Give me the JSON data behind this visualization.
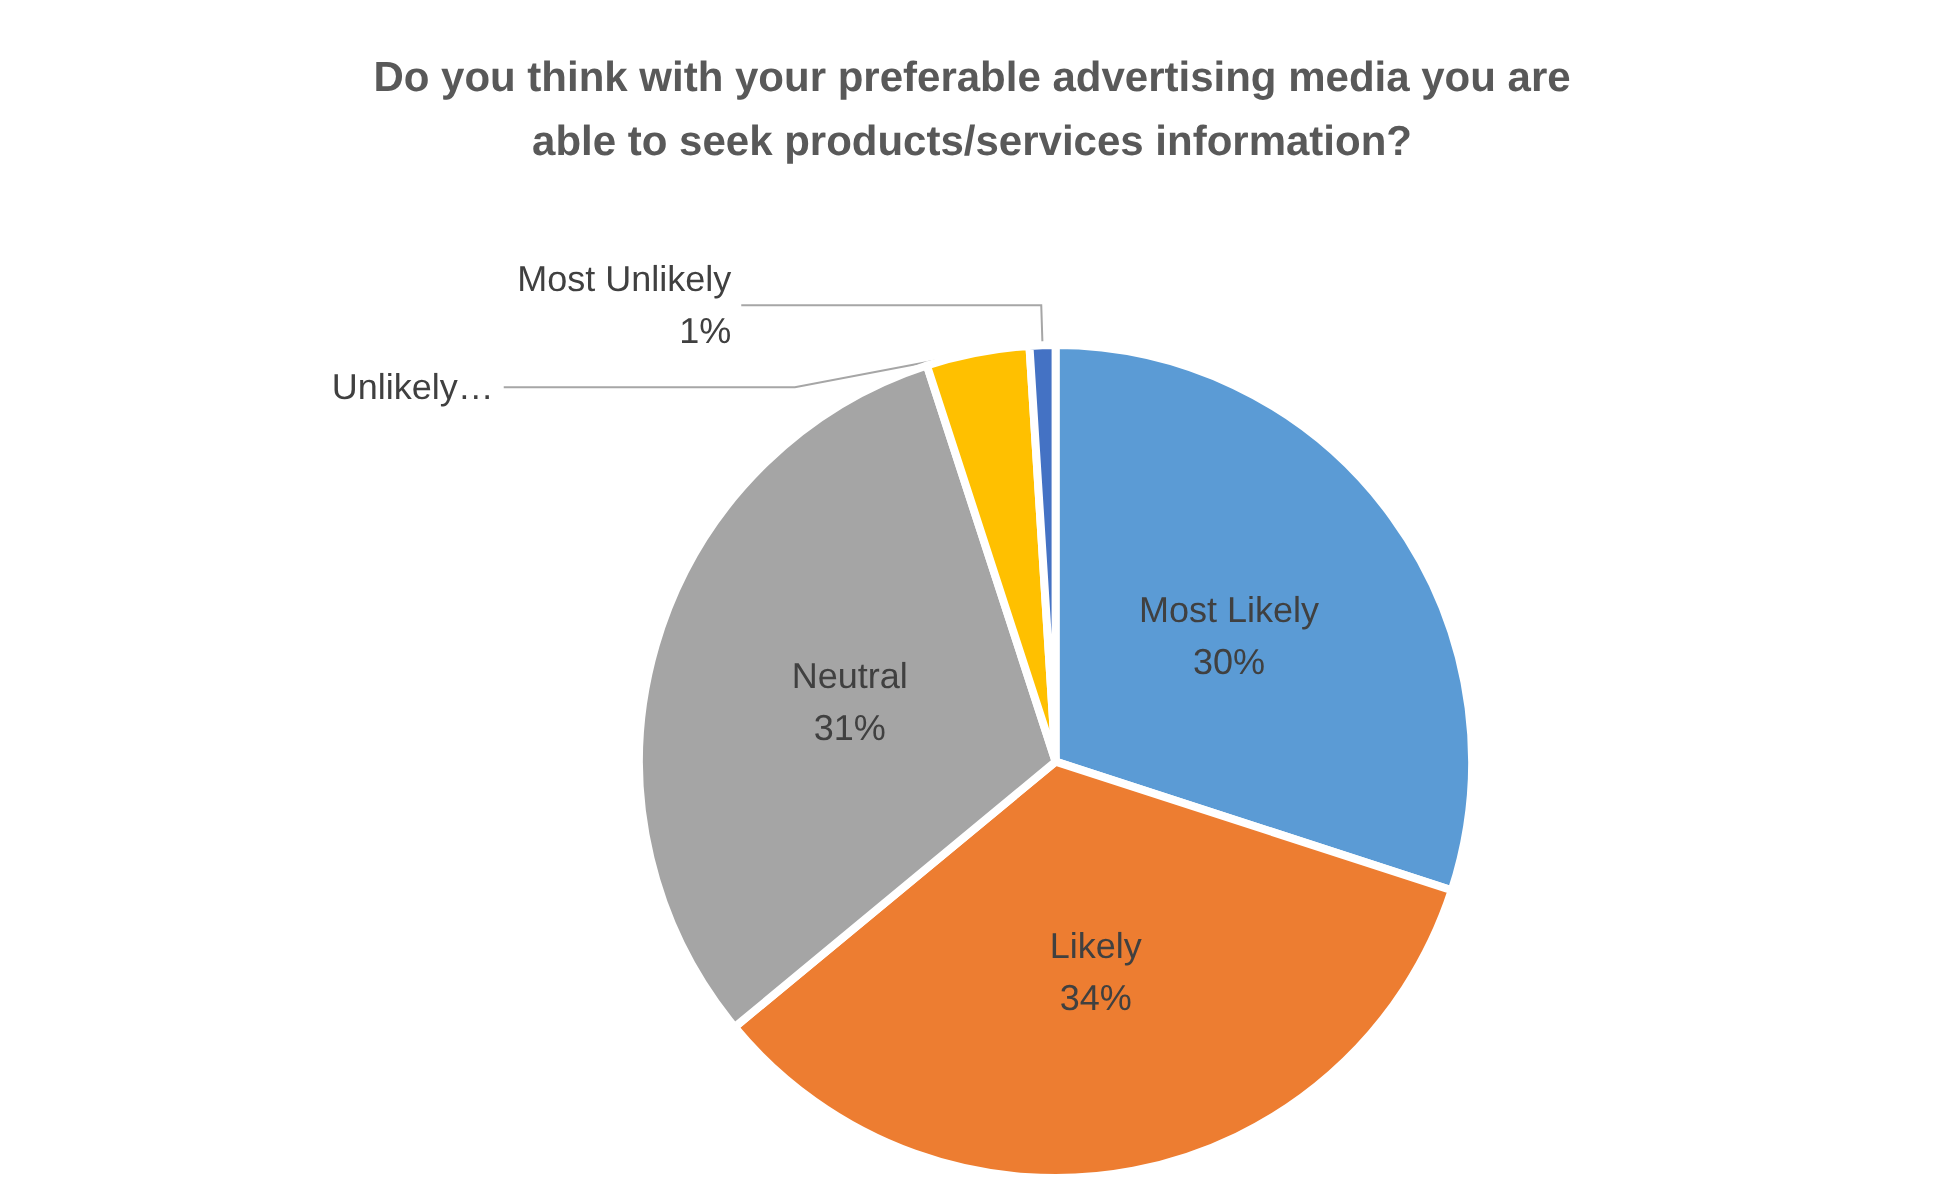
{
  "chart_data": {
    "type": "pie",
    "title": "Do you think with your preferable advertising media you are\nable to seek products/services information?",
    "categories": [
      "Most Likely",
      "Likely",
      "Neutral",
      "Unlikely…",
      "Most Unlikely"
    ],
    "values": [
      30,
      34,
      31,
      4,
      1
    ],
    "colors": [
      "#5b9bd5",
      "#ed7d31",
      "#a5a5a5",
      "#ffc000",
      "#4472c4"
    ],
    "value_labels": [
      "30%",
      "34%",
      "31%",
      null,
      "1%"
    ]
  }
}
